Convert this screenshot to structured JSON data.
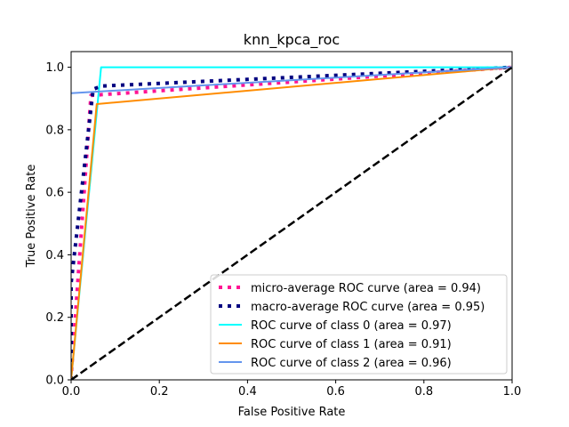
{
  "chart_data": {
    "type": "line",
    "title": "knn_kpca_roc",
    "xlabel": "False Positive Rate",
    "ylabel": "True Positive Rate",
    "xlim": [
      0,
      1
    ],
    "ylim": [
      0,
      1.05
    ],
    "xticks": [
      0.0,
      0.2,
      0.4,
      0.6,
      0.8,
      1.0
    ],
    "yticks": [
      0.0,
      0.2,
      0.4,
      0.6,
      0.8,
      1.0
    ],
    "xtick_labels": [
      "0.0",
      "0.2",
      "0.4",
      "0.6",
      "0.8",
      "1.0"
    ],
    "ytick_labels": [
      "0.0",
      "0.2",
      "0.4",
      "0.6",
      "0.8",
      "1.0"
    ],
    "grid": false,
    "legend_position": "lower-right",
    "series": [
      {
        "name": "micro-average ROC curve (area = 0.94)",
        "color": "#ff1493",
        "style": "dotted",
        "x": [
          0.0,
          0.0,
          0.045,
          1.0
        ],
        "y": [
          0.0,
          0.01,
          0.91,
          1.0
        ]
      },
      {
        "name": "macro-average ROC curve (area = 0.95)",
        "color": "#000080",
        "style": "dotted",
        "x": [
          0.0,
          0.0,
          0.05,
          0.07,
          1.0
        ],
        "y": [
          0.0,
          0.31,
          0.93,
          0.94,
          1.0
        ]
      },
      {
        "name": "ROC curve of class 0 (area = 0.97)",
        "color": "#00ffff",
        "style": "solid",
        "x": [
          0.0,
          0.068,
          1.0
        ],
        "y": [
          0.0,
          1.0,
          1.0
        ]
      },
      {
        "name": "ROC curve of class 1 (area = 0.91)",
        "color": "#ff8c00",
        "style": "solid",
        "x": [
          0.0,
          0.058,
          1.0
        ],
        "y": [
          0.0,
          0.882,
          1.0
        ]
      },
      {
        "name": "ROC curve of class 2 (area = 0.96)",
        "color": "#6495ed",
        "style": "solid",
        "x": [
          0.0,
          1.0
        ],
        "y": [
          0.917,
          1.0
        ]
      }
    ],
    "reference_line": {
      "color": "#000000",
      "style": "dashed",
      "x": [
        0.0,
        1.0
      ],
      "y": [
        0.0,
        1.0
      ]
    }
  }
}
